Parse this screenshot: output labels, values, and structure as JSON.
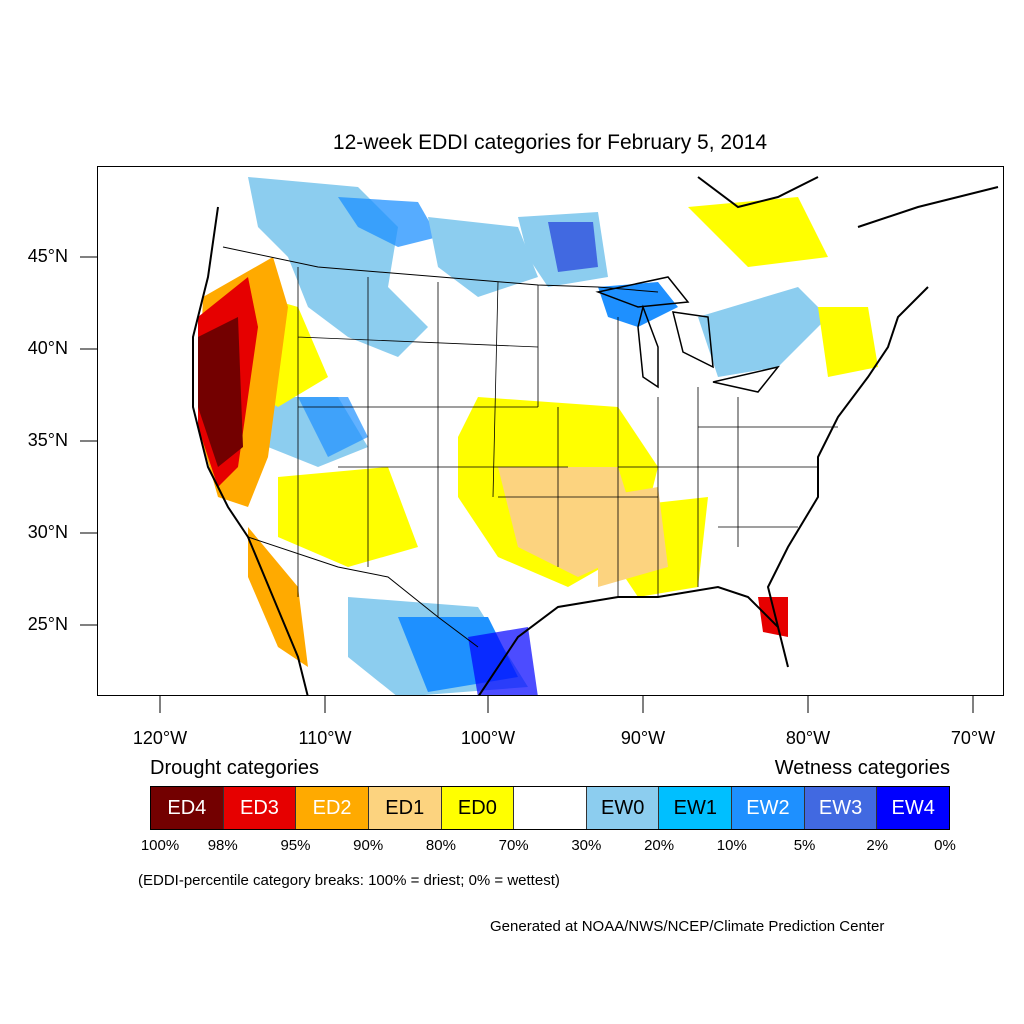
{
  "title": "12-week EDDI categories for February 5, 2014",
  "axes": {
    "lat_labels": [
      "45°N",
      "40°N",
      "35°N",
      "30°N",
      "25°N"
    ],
    "lon_labels": [
      "120°W",
      "110°W",
      "100°W",
      "90°W",
      "80°W",
      "70°W"
    ]
  },
  "legend": {
    "drought_heading": "Drought categories",
    "wetness_heading": "Wetness categories",
    "categories": [
      {
        "label": "ED4",
        "color": "#730000",
        "text_color": "#ffffff"
      },
      {
        "label": "ED3",
        "color": "#e60000",
        "text_color": "#ffffff"
      },
      {
        "label": "ED2",
        "color": "#ffaa00",
        "text_color": "#ffffff"
      },
      {
        "label": "ED1",
        "color": "#fcd37f",
        "text_color": "#000000"
      },
      {
        "label": "ED0",
        "color": "#ffff00",
        "text_color": "#000000"
      },
      {
        "label": "",
        "color": "#ffffff",
        "text_color": "#000000"
      },
      {
        "label": "EW0",
        "color": "#8ccdef",
        "text_color": "#000000"
      },
      {
        "label": "EW1",
        "color": "#00bfff",
        "text_color": "#000000"
      },
      {
        "label": "EW2",
        "color": "#1e90ff",
        "text_color": "#ffffff"
      },
      {
        "label": "EW3",
        "color": "#4169e1",
        "text_color": "#ffffff"
      },
      {
        "label": "EW4",
        "color": "#0000ff",
        "text_color": "#ffffff"
      }
    ],
    "breaks": [
      "100%",
      "98%",
      "95%",
      "90%",
      "80%",
      "70%",
      "30%",
      "20%",
      "10%",
      "5%",
      "2%",
      "0%"
    ]
  },
  "note": "(EDDI-percentile category breaks: 100% = driest; 0% = wettest)",
  "credit": "Generated at NOAA/NWS/NCEP/Climate Prediction Center"
}
